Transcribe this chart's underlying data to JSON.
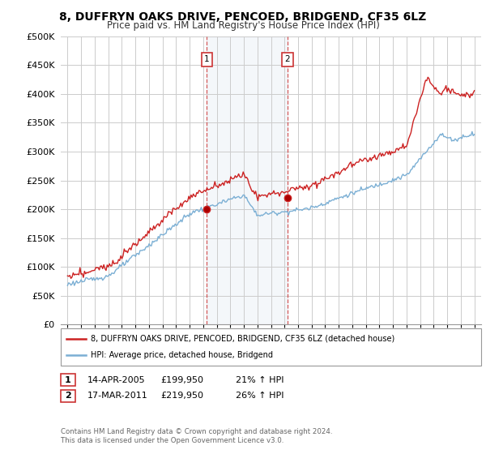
{
  "title": "8, DUFFRYN OAKS DRIVE, PENCOED, BRIDGEND, CF35 6LZ",
  "subtitle": "Price paid vs. HM Land Registry's House Price Index (HPI)",
  "ylabel_ticks": [
    "£0",
    "£50K",
    "£100K",
    "£150K",
    "£200K",
    "£250K",
    "£300K",
    "£350K",
    "£400K",
    "£450K",
    "£500K"
  ],
  "ytick_values": [
    0,
    50000,
    100000,
    150000,
    200000,
    250000,
    300000,
    350000,
    400000,
    450000,
    500000
  ],
  "xlim_start": 1994.5,
  "xlim_end": 2025.5,
  "ylim": [
    0,
    500000
  ],
  "hpi_color": "#7bafd4",
  "price_color": "#cc2222",
  "sale1_year": 2005.28,
  "sale1_price": 199950,
  "sale2_year": 2011.21,
  "sale2_price": 219950,
  "annotation1_date": "14-APR-2005",
  "annotation1_price": "£199,950",
  "annotation1_hpi": "21% ↑ HPI",
  "annotation2_date": "17-MAR-2011",
  "annotation2_price": "£219,950",
  "annotation2_hpi": "26% ↑ HPI",
  "legend_line1": "8, DUFFRYN OAKS DRIVE, PENCOED, BRIDGEND, CF35 6LZ (detached house)",
  "legend_line2": "HPI: Average price, detached house, Bridgend",
  "footer": "Contains HM Land Registry data © Crown copyright and database right 2024.\nThis data is licensed under the Open Government Licence v3.0.",
  "shade_x1": 2005.28,
  "shade_x2": 2011.21,
  "background_color": "#ffffff",
  "grid_color": "#cccccc"
}
